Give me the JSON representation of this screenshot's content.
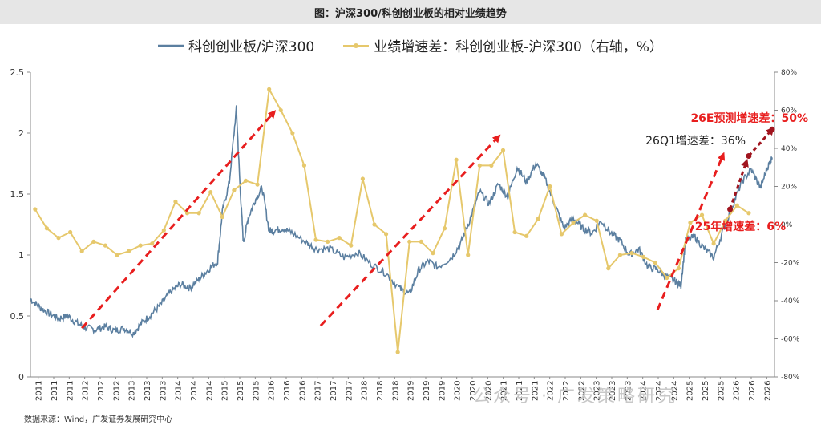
{
  "title": "图：沪深300/科创创业板的相对业绩趋势",
  "source": "数据来源：Wind，广发证券发展研究中心",
  "watermark": "公众号 · 广发策略研究",
  "colors": {
    "ratio": "#5b7fa0",
    "growth": "#e6c86c",
    "arrow": "#e81e1e",
    "dark_arrow": "#a0141e"
  },
  "chart_data": {
    "type": "line",
    "legend": [
      "科创创业板/沪深300",
      "业绩增速差：科创创业板-沪深300（右轴，%）"
    ],
    "y_left": {
      "range": [
        0,
        2.5
      ],
      "ticks": [
        "0",
        "0.5",
        "1",
        "1.5",
        "2",
        "2.5"
      ]
    },
    "y_right": {
      "range": [
        -80,
        80
      ],
      "ticks": [
        "-80%",
        "-60%",
        "-40%",
        "-20%",
        "0%",
        "20%",
        "40%",
        "60%",
        "80%"
      ]
    },
    "x_range": [
      2010.9,
      2026.8
    ],
    "x_ticks": [
      "2011",
      "2011",
      "2011",
      "2012",
      "2012",
      "2012",
      "2013",
      "2013",
      "2013",
      "2014",
      "2014",
      "2014",
      "2015",
      "2015",
      "2015",
      "2016",
      "2016",
      "2016",
      "2017",
      "2017",
      "2017",
      "2018",
      "2018",
      "2018",
      "2019",
      "2019",
      "2019",
      "2020",
      "2020",
      "2020",
      "2021",
      "2021",
      "2021",
      "2022",
      "2022",
      "2022",
      "2023",
      "2023",
      "2023",
      "2024",
      "2024",
      "2024",
      "2025",
      "2025",
      "2025",
      "2026",
      "2026",
      "2026"
    ],
    "series": [
      {
        "name": "科创创业板/沪深300",
        "axis": "left",
        "x": [
          2010.9,
          2011.1,
          2011.3,
          2011.5,
          2011.7,
          2011.9,
          2012.1,
          2012.3,
          2012.5,
          2012.7,
          2012.9,
          2013.1,
          2013.3,
          2013.5,
          2013.7,
          2013.9,
          2014.1,
          2014.3,
          2014.5,
          2014.7,
          2014.9,
          2015.0,
          2015.15,
          2015.3,
          2015.38,
          2015.45,
          2015.55,
          2015.7,
          2015.85,
          2016.0,
          2016.1,
          2016.3,
          2016.5,
          2016.8,
          2017.0,
          2017.3,
          2017.6,
          2017.9,
          2018.2,
          2018.5,
          2018.8,
          2019.0,
          2019.2,
          2019.4,
          2019.6,
          2019.9,
          2020.1,
          2020.3,
          2020.5,
          2020.7,
          2020.9,
          2021.1,
          2021.3,
          2021.5,
          2021.7,
          2021.9,
          2022.1,
          2022.3,
          2022.5,
          2022.7,
          2022.9,
          2023.1,
          2023.3,
          2023.5,
          2023.7,
          2023.9,
          2024.1,
          2024.3,
          2024.5,
          2024.7,
          2024.8,
          2024.9,
          2025.1,
          2025.3,
          2025.5,
          2025.7,
          2025.9,
          2026.1,
          2026.3,
          2026.5,
          2026.65,
          2026.75
        ],
        "values": [
          0.64,
          0.57,
          0.52,
          0.48,
          0.5,
          0.44,
          0.4,
          0.39,
          0.41,
          0.38,
          0.4,
          0.36,
          0.45,
          0.52,
          0.6,
          0.7,
          0.76,
          0.73,
          0.8,
          0.88,
          0.95,
          1.35,
          1.6,
          2.2,
          1.55,
          1.1,
          1.3,
          1.45,
          1.55,
          1.2,
          1.2,
          1.22,
          1.18,
          1.1,
          1.05,
          1.05,
          0.98,
          1.02,
          0.92,
          0.85,
          0.72,
          0.68,
          0.88,
          0.95,
          0.9,
          0.98,
          1.1,
          1.3,
          1.52,
          1.42,
          1.58,
          1.48,
          1.72,
          1.6,
          1.75,
          1.62,
          1.42,
          1.22,
          1.3,
          1.22,
          1.18,
          1.28,
          1.18,
          1.12,
          1.0,
          1.05,
          0.9,
          0.88,
          0.82,
          0.78,
          0.75,
          1.12,
          1.15,
          1.05,
          0.98,
          1.2,
          1.4,
          1.6,
          1.7,
          1.55,
          1.72,
          1.8
        ]
      },
      {
        "name": "业绩增速差：科创创业板-沪深300（右轴，%）",
        "axis": "right",
        "x": [
          2011.0,
          2011.25,
          2011.5,
          2011.75,
          2012.0,
          2012.25,
          2012.5,
          2012.75,
          2013.0,
          2013.25,
          2013.5,
          2013.75,
          2014.0,
          2014.25,
          2014.5,
          2014.75,
          2015.0,
          2015.25,
          2015.5,
          2015.75,
          2016.0,
          2016.25,
          2016.5,
          2016.75,
          2017.0,
          2017.25,
          2017.5,
          2017.75,
          2018.0,
          2018.25,
          2018.5,
          2018.75,
          2019.0,
          2019.25,
          2019.5,
          2019.75,
          2020.0,
          2020.25,
          2020.5,
          2020.75,
          2021.0,
          2021.25,
          2021.5,
          2021.75,
          2022.0,
          2022.25,
          2022.5,
          2022.75,
          2023.0,
          2023.25,
          2023.5,
          2023.75,
          2024.0,
          2024.25,
          2024.5,
          2024.75,
          2025.0,
          2025.25,
          2025.5,
          2025.75,
          2026.0,
          2026.25
        ],
        "values": [
          8,
          -2,
          -7,
          -4,
          -14,
          -9,
          -11,
          -16,
          -14,
          -11,
          -10,
          -3,
          12,
          6,
          6,
          17,
          4,
          18,
          23,
          21,
          71,
          60,
          48,
          31,
          -8,
          -9,
          -7,
          -11,
          24,
          0,
          -5,
          -67,
          -9,
          -9,
          -15,
          -2,
          34,
          -16,
          31,
          31,
          39,
          -4,
          -6,
          3,
          20,
          -5,
          1,
          5,
          2,
          -23,
          -16,
          -15,
          -17,
          -20,
          -28,
          -23,
          1,
          5,
          -10,
          2,
          10,
          6
        ]
      }
    ],
    "annotations": [
      {
        "text": "26E预测增速差：50%",
        "color": "#e81e1e"
      },
      {
        "text": "26Q1增速差：36%",
        "color": "#222222"
      },
      {
        "text": "25年增速差：6%",
        "color": "#e81e1e"
      }
    ]
  }
}
